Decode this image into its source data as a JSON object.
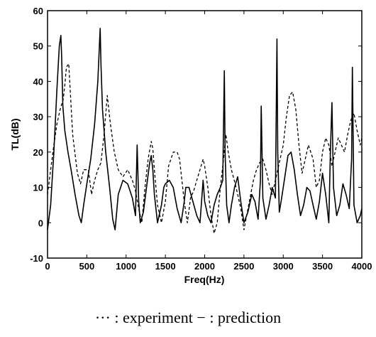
{
  "chart_data": {
    "type": "line",
    "xlabel": "Freq(Hz)",
    "ylabel": "TL(dB)",
    "xlim": [
      0,
      4000
    ],
    "ylim": [
      -10,
      60
    ],
    "xticks": [
      0,
      500,
      1000,
      1500,
      2000,
      2500,
      3000,
      3500,
      4000
    ],
    "yticks": [
      -10,
      0,
      10,
      20,
      30,
      40,
      50,
      60
    ],
    "grid": false,
    "legend_caption": "··· : experiment  − : prediction",
    "series": [
      {
        "name": "prediction",
        "style": "solid",
        "x": [
          0,
          40,
          80,
          120,
          150,
          170,
          180,
          195,
          220,
          260,
          300,
          350,
          400,
          430,
          460,
          500,
          550,
          600,
          640,
          670,
          680,
          700,
          740,
          790,
          830,
          860,
          900,
          960,
          1020,
          1080,
          1120,
          1140,
          1160,
          1180,
          1220,
          1260,
          1300,
          1320,
          1340,
          1360,
          1400,
          1450,
          1480,
          1500,
          1550,
          1600,
          1650,
          1700,
          1740,
          1760,
          1800,
          1850,
          1900,
          1940,
          1960,
          1980,
          2000,
          2040,
          2080,
          2120,
          2160,
          2200,
          2230,
          2250,
          2260,
          2280,
          2310,
          2340,
          2380,
          2420,
          2460,
          2500,
          2550,
          2600,
          2640,
          2680,
          2710,
          2720,
          2740,
          2780,
          2820,
          2860,
          2900,
          2920,
          2930,
          2950,
          2980,
          3020,
          3060,
          3100,
          3140,
          3180,
          3220,
          3260,
          3300,
          3340,
          3380,
          3420,
          3460,
          3500,
          3540,
          3580,
          3600,
          3620,
          3640,
          3680,
          3720,
          3760,
          3800,
          3840,
          3870,
          3880,
          3900,
          3940,
          3980,
          4000
        ],
        "y": [
          -2,
          5,
          20,
          38,
          50,
          53,
          47,
          33,
          26,
          20,
          15,
          8,
          2,
          0,
          5,
          11,
          18,
          28,
          40,
          55,
          45,
          32,
          20,
          10,
          1,
          -2,
          8,
          12,
          11,
          7,
          2,
          22,
          6,
          0,
          3,
          10,
          17,
          19,
          15,
          8,
          0,
          5,
          10,
          11,
          12,
          10,
          4,
          0,
          6,
          10,
          10,
          6,
          2,
          0,
          6,
          12,
          6,
          2,
          0,
          5,
          8,
          10,
          12,
          43,
          20,
          5,
          0,
          5,
          10,
          13,
          6,
          0,
          3,
          8,
          6,
          1,
          12,
          33,
          7,
          1,
          5,
          10,
          7,
          52,
          20,
          3,
          7,
          13,
          19,
          20,
          15,
          8,
          2,
          5,
          10,
          9,
          5,
          1,
          6,
          14,
          8,
          0,
          20,
          34,
          10,
          2,
          5,
          11,
          8,
          4,
          18,
          44,
          5,
          0,
          2,
          4
        ]
      },
      {
        "name": "experiment",
        "style": "dashed",
        "x": [
          0,
          40,
          80,
          120,
          160,
          200,
          220,
          240,
          270,
          320,
          380,
          420,
          460,
          520,
          560,
          600,
          640,
          680,
          720,
          760,
          800,
          850,
          900,
          960,
          1020,
          1080,
          1120,
          1160,
          1200,
          1240,
          1280,
          1320,
          1340,
          1360,
          1400,
          1450,
          1500,
          1540,
          1600,
          1650,
          1680,
          1700,
          1740,
          1780,
          1820,
          1860,
          1900,
          1940,
          1980,
          2000,
          2040,
          2080,
          2120,
          2160,
          2200,
          2240,
          2270,
          2300,
          2340,
          2400,
          2460,
          2500,
          2560,
          2620,
          2660,
          2700,
          2740,
          2780,
          2820,
          2860,
          2900,
          2960,
          3000,
          3040,
          3080,
          3120,
          3160,
          3200,
          3240,
          3280,
          3320,
          3380,
          3420,
          3460,
          3500,
          3540,
          3580,
          3620,
          3660,
          3700,
          3740,
          3780,
          3820,
          3860,
          3900,
          3940,
          3980,
          4000
        ],
        "y": [
          8,
          15,
          22,
          28,
          32,
          35,
          39,
          44,
          45,
          25,
          14,
          11,
          15,
          15,
          8,
          12,
          15,
          17,
          25,
          36,
          28,
          20,
          15,
          13,
          15,
          12,
          9,
          4,
          0,
          10,
          18,
          23,
          21,
          15,
          5,
          0,
          6,
          16,
          20,
          20,
          18,
          14,
          6,
          0,
          7,
          9,
          12,
          15,
          18,
          16,
          10,
          2,
          -3,
          0,
          10,
          18,
          25,
          20,
          15,
          10,
          4,
          -2,
          5,
          12,
          15,
          17,
          18,
          15,
          11,
          8,
          12,
          18,
          22,
          30,
          36,
          37,
          32,
          22,
          14,
          18,
          22,
          18,
          10,
          12,
          20,
          24,
          22,
          16,
          20,
          24,
          22,
          20,
          25,
          29,
          31,
          26,
          22,
          24
        ]
      }
    ]
  }
}
